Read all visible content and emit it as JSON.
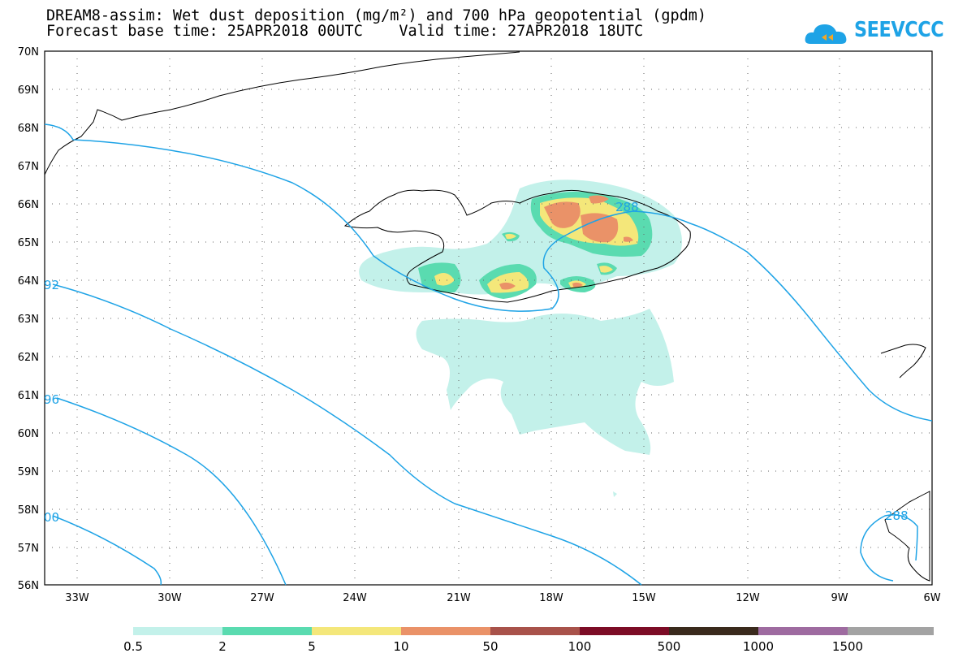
{
  "header": {
    "title_line1": "DREAM8-assim: Wet dust deposition (mg/m²) and 700 hPa geopotential (gpdm)",
    "title_line2": "Forecast base time: 25APR2018 00UTC    Valid time: 27APR2018 18UTC",
    "logo_text": "SEEVCCC",
    "logo_icon": "cloud-icon"
  },
  "map": {
    "lat_labels": [
      "70N",
      "69N",
      "68N",
      "67N",
      "66N",
      "65N",
      "64N",
      "63N",
      "62N",
      "61N",
      "60N",
      "59N",
      "58N",
      "57N",
      "56N"
    ],
    "lon_labels": [
      "33W",
      "30W",
      "27W",
      "24W",
      "21W",
      "18W",
      "15W",
      "12W",
      "9W",
      "6W"
    ],
    "contour_color": "#1ea3e6",
    "contour_labels": [
      "288",
      "92",
      "96",
      "00",
      "288"
    ],
    "coast_color": "#000000"
  },
  "legend": {
    "thresholds": [
      "0.5",
      "2",
      "5",
      "10",
      "50",
      "100",
      "500",
      "1000",
      "1500"
    ],
    "colors": [
      "#c3f1ea",
      "#5adbb0",
      "#f4e77a",
      "#ea9268",
      "#a8524a",
      "#7c0c26",
      "#3a2a1d",
      "#9e6ba0",
      "#a3a3a3"
    ]
  }
}
